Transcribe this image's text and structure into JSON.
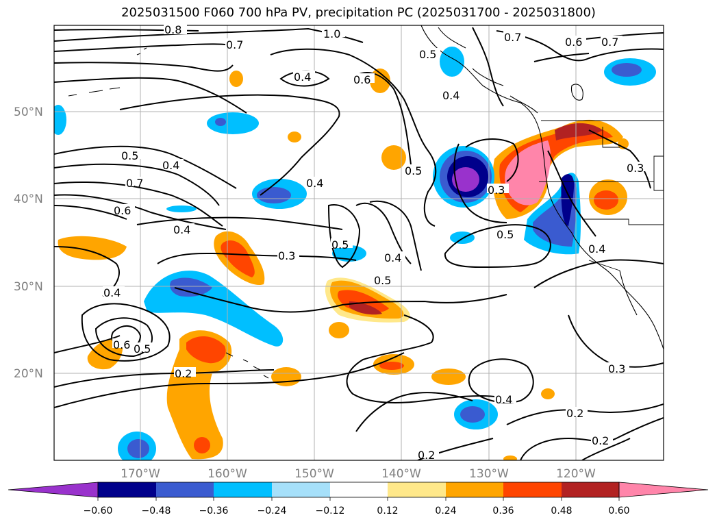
{
  "title": "2025031500 F060 700 hPa PV, precipitation PC (2025031700 - 2025031800)",
  "lat_labels": [
    "50°N",
    "40°N",
    "30°N",
    "20°N"
  ],
  "lon_labels": [
    "170°W",
    "160°W",
    "150°W",
    "140°W",
    "130°W",
    "120°W"
  ],
  "contour_labels": [
    "0.8",
    "1.0",
    "0.7",
    "0.7",
    "0.6",
    "0.7",
    "0.5",
    "0.4",
    "0.6",
    "0.4",
    "0.5",
    "0.4",
    "0.5",
    "0.4",
    "0.7",
    "0.6",
    "0.4",
    "0.3",
    "0.3",
    "0.5",
    "0.5",
    "0.3",
    "0.4",
    "0.5",
    "0.4",
    "0.4",
    "0.6",
    "0.5",
    "0.2",
    "0.3",
    "0.4",
    "0.2",
    "0.2",
    "0.2"
  ],
  "colorbar": {
    "ticks": [
      "−0.60",
      "−0.48",
      "−0.36",
      "−0.24",
      "−0.12",
      "0.12",
      "0.24",
      "0.36",
      "0.48",
      "0.60"
    ],
    "colors": [
      "#9932cc",
      "#00008b",
      "#3a5bd0",
      "#00bfff",
      "#a6e0fa",
      "#ffffff",
      "#ffe88a",
      "#ffa500",
      "#ff4500",
      "#b22222",
      "#ff85aa"
    ]
  }
}
